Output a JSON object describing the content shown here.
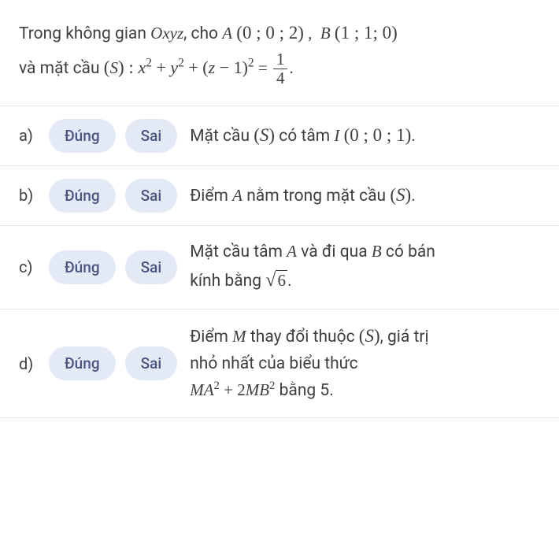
{
  "question": {
    "prefix_text": "Trong không gian ",
    "space_var": "Oxyz",
    "mid_text": ", cho ",
    "A_label": "A",
    "A_coords": "(0 ; 0 ; 2)",
    "comma": " , ",
    "B_label": "B",
    "B_coords": "(1 ; 1; 0)",
    "line2_prefix": "và mặt cầu ",
    "S_open": "(",
    "S_var": "S",
    "S_close": ") : ",
    "equation_lhs": "x² + y² + (z − 1)²",
    "equals": " = ",
    "frac_num": "1",
    "frac_den": "4",
    "period": "."
  },
  "labels": {
    "true": "Đúng",
    "false": "Sai"
  },
  "rows": {
    "a": {
      "letter": "a)",
      "statement_pre": "Mặt cầu ",
      "S_paren": "(S)",
      "mid": " có tâm ",
      "I_label": "I",
      "I_coords": "(0 ; 0 ; 1)",
      "period": "."
    },
    "b": {
      "letter": "b)",
      "pre": "Điểm ",
      "A": "A",
      "mid": " nằm trong mặt cầu ",
      "S_paren": "(S)",
      "period": "."
    },
    "c": {
      "letter": "c)",
      "line1_pre": "Mặt cầu tâm ",
      "A": "A",
      "line1_mid": " và đi qua ",
      "B": "B",
      "line1_post": " có bán",
      "line2_pre": "kính bằng ",
      "sqrt_val": "6",
      "period": "."
    },
    "d": {
      "letter": "d)",
      "line1_pre": "Điểm ",
      "M": "M",
      "line1_mid": " thay đổi thuộc ",
      "S_paren": "(S)",
      "line1_post": ", giá trị",
      "line2": "nhỏ nhất của biểu thức",
      "expr_MA": "MA",
      "sup2_1": "2",
      "plus": " + 2",
      "expr_MB": "MB",
      "sup2_2": "2",
      "post": " bằng 5."
    }
  },
  "colors": {
    "pill_bg": "#e4e9f6",
    "pill_text": "#4a5680",
    "text": "#3c4043",
    "border": "#e8e8e8",
    "background": "#ffffff"
  }
}
